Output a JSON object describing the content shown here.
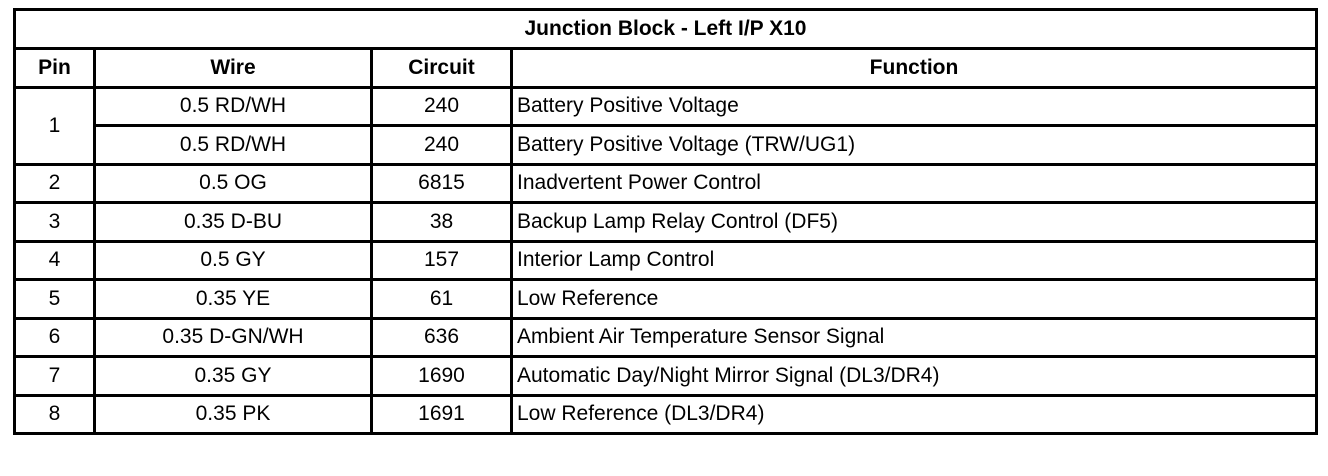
{
  "title": "Junction Block - Left I/P X10",
  "headers": {
    "pin": "Pin",
    "wire": "Wire",
    "circuit": "Circuit",
    "function": "Function"
  },
  "rows": [
    {
      "pin": "1",
      "wire": "0.5 RD/WH",
      "circuit": "240",
      "function": "Battery Positive Voltage"
    },
    {
      "pin": "",
      "wire": "0.5 RD/WH",
      "circuit": "240",
      "function": "Battery Positive Voltage (TRW/UG1)"
    },
    {
      "pin": "2",
      "wire": "0.5 OG",
      "circuit": "6815",
      "function": "Inadvertent Power Control"
    },
    {
      "pin": "3",
      "wire": "0.35 D-BU",
      "circuit": "38",
      "function": "Backup Lamp Relay Control (DF5)"
    },
    {
      "pin": "4",
      "wire": "0.5 GY",
      "circuit": "157",
      "function": "Interior Lamp Control"
    },
    {
      "pin": "5",
      "wire": "0.35 YE",
      "circuit": "61",
      "function": "Low Reference"
    },
    {
      "pin": "6",
      "wire": "0.35 D-GN/WH",
      "circuit": "636",
      "function": "Ambient Air Temperature Sensor Signal"
    },
    {
      "pin": "7",
      "wire": "0.35 GY",
      "circuit": "1690",
      "function": "Automatic Day/Night Mirror Signal (DL3/DR4)"
    },
    {
      "pin": "8",
      "wire": "0.35 PK",
      "circuit": "1691",
      "function": "Low Reference (DL3/DR4)"
    }
  ]
}
